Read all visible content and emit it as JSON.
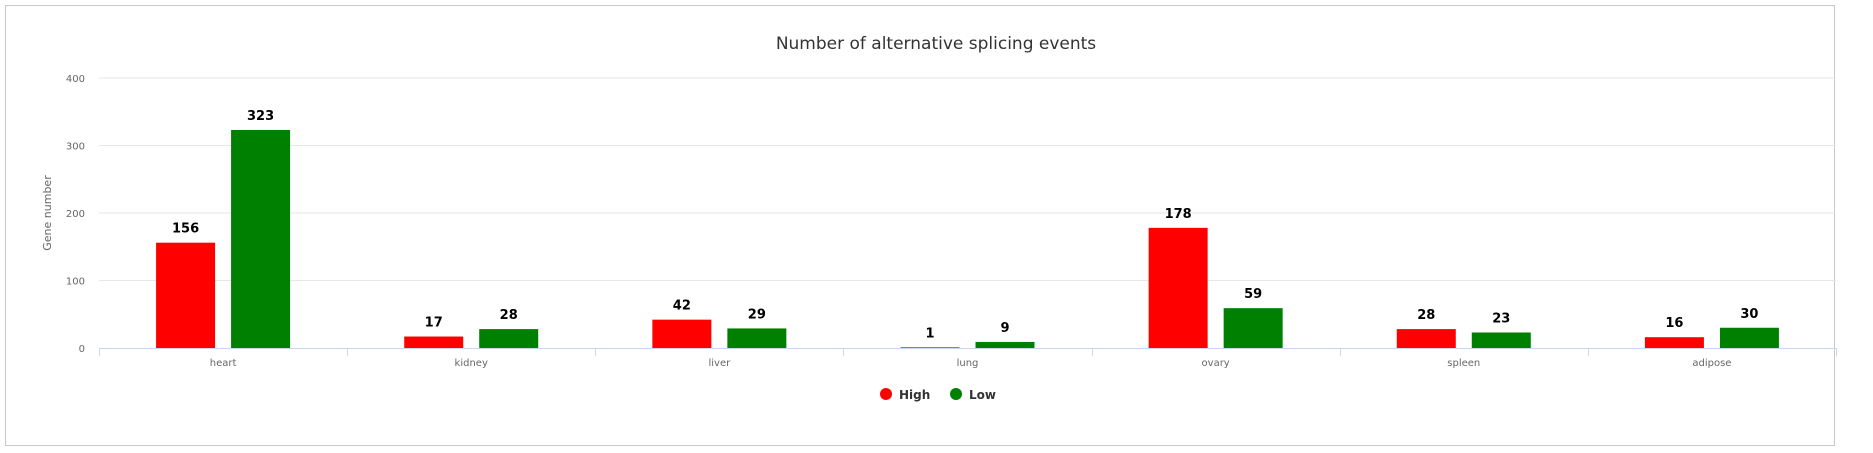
{
  "chart_data": {
    "type": "bar",
    "title": "Number of alternative splicing events",
    "xlabel": "",
    "ylabel": "Gene number",
    "categories": [
      "heart",
      "kidney",
      "liver",
      "lung",
      "ovary",
      "spleen",
      "adipose"
    ],
    "series": [
      {
        "name": "High",
        "color": "#ff0000",
        "values": [
          156,
          17,
          42,
          1,
          178,
          28,
          16
        ]
      },
      {
        "name": "Low",
        "color": "#008000",
        "values": [
          323,
          28,
          29,
          9,
          59,
          23,
          30
        ]
      }
    ],
    "ylim": [
      0,
      400
    ],
    "yticks": [
      0,
      100,
      200,
      300,
      400
    ],
    "grid": true,
    "legend": "bottom-center",
    "data_labels": true
  }
}
